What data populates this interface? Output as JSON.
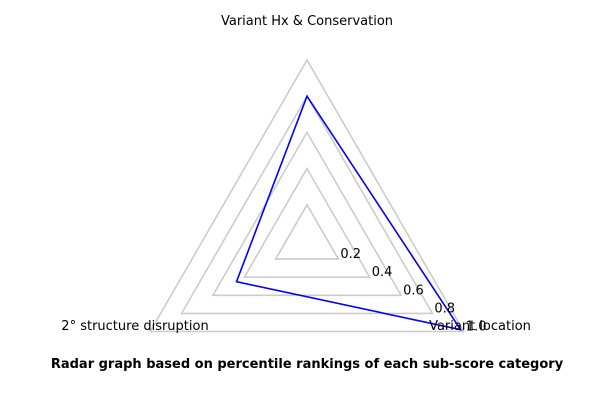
{
  "chart_data": {
    "type": "radar",
    "axes": [
      "Variant Hx & Conservation",
      "Variant location",
      "2° structure disruption"
    ],
    "series": [
      {
        "values": [
          0.8,
          0.98,
          0.45
        ],
        "color": "#0000ff"
      }
    ],
    "rlim": [
      0,
      1.0
    ],
    "ticks": [
      0.2,
      0.4,
      0.6,
      0.8,
      1.0
    ],
    "tick_labels": [
      "0.2",
      "0.4",
      "0.6",
      "0.8",
      "1.0"
    ],
    "grid": true,
    "grid_color": "#cccccc"
  },
  "caption": "Radar graph based on percentile rankings of each sub-score category"
}
